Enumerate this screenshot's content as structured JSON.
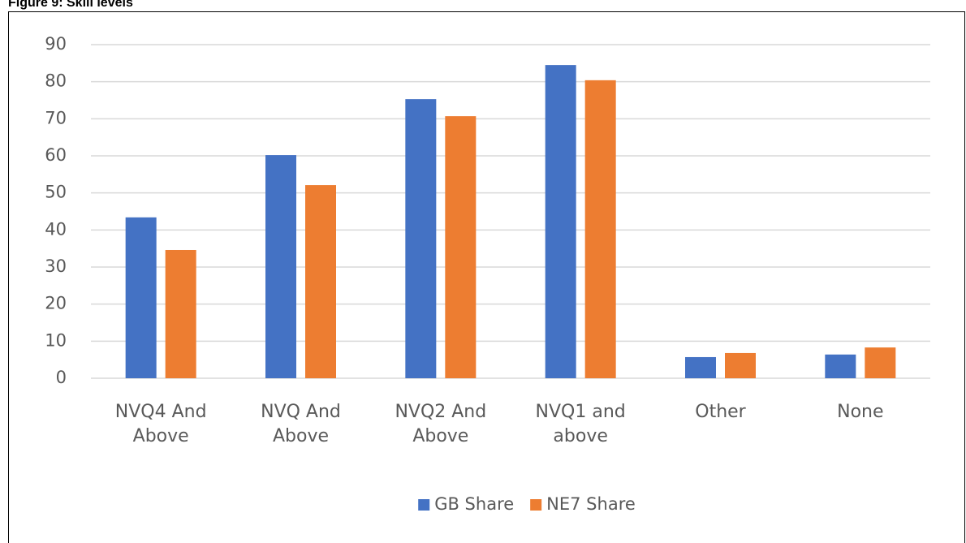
{
  "chart_data": {
    "type": "bar",
    "title": "Figure 9: Skill levels",
    "categories": [
      "NVQ4 And Above",
      "NVQ And Above",
      "NVQ2 And Above",
      "NVQ1 and above",
      "Other",
      "None"
    ],
    "series": [
      {
        "name": "GB Share",
        "color": "#4472c4",
        "values": [
          43.4,
          60.2,
          75.3,
          84.5,
          5.7,
          6.4
        ]
      },
      {
        "name": "NE7 Share",
        "color": "#ed7d31",
        "values": [
          34.6,
          52.1,
          70.7,
          80.4,
          6.8,
          8.3
        ]
      }
    ],
    "ylim": [
      0,
      90
    ],
    "yticks": [
      0,
      10,
      20,
      30,
      40,
      50,
      60,
      70,
      80,
      90
    ],
    "grid": true,
    "legend": "bottom"
  }
}
